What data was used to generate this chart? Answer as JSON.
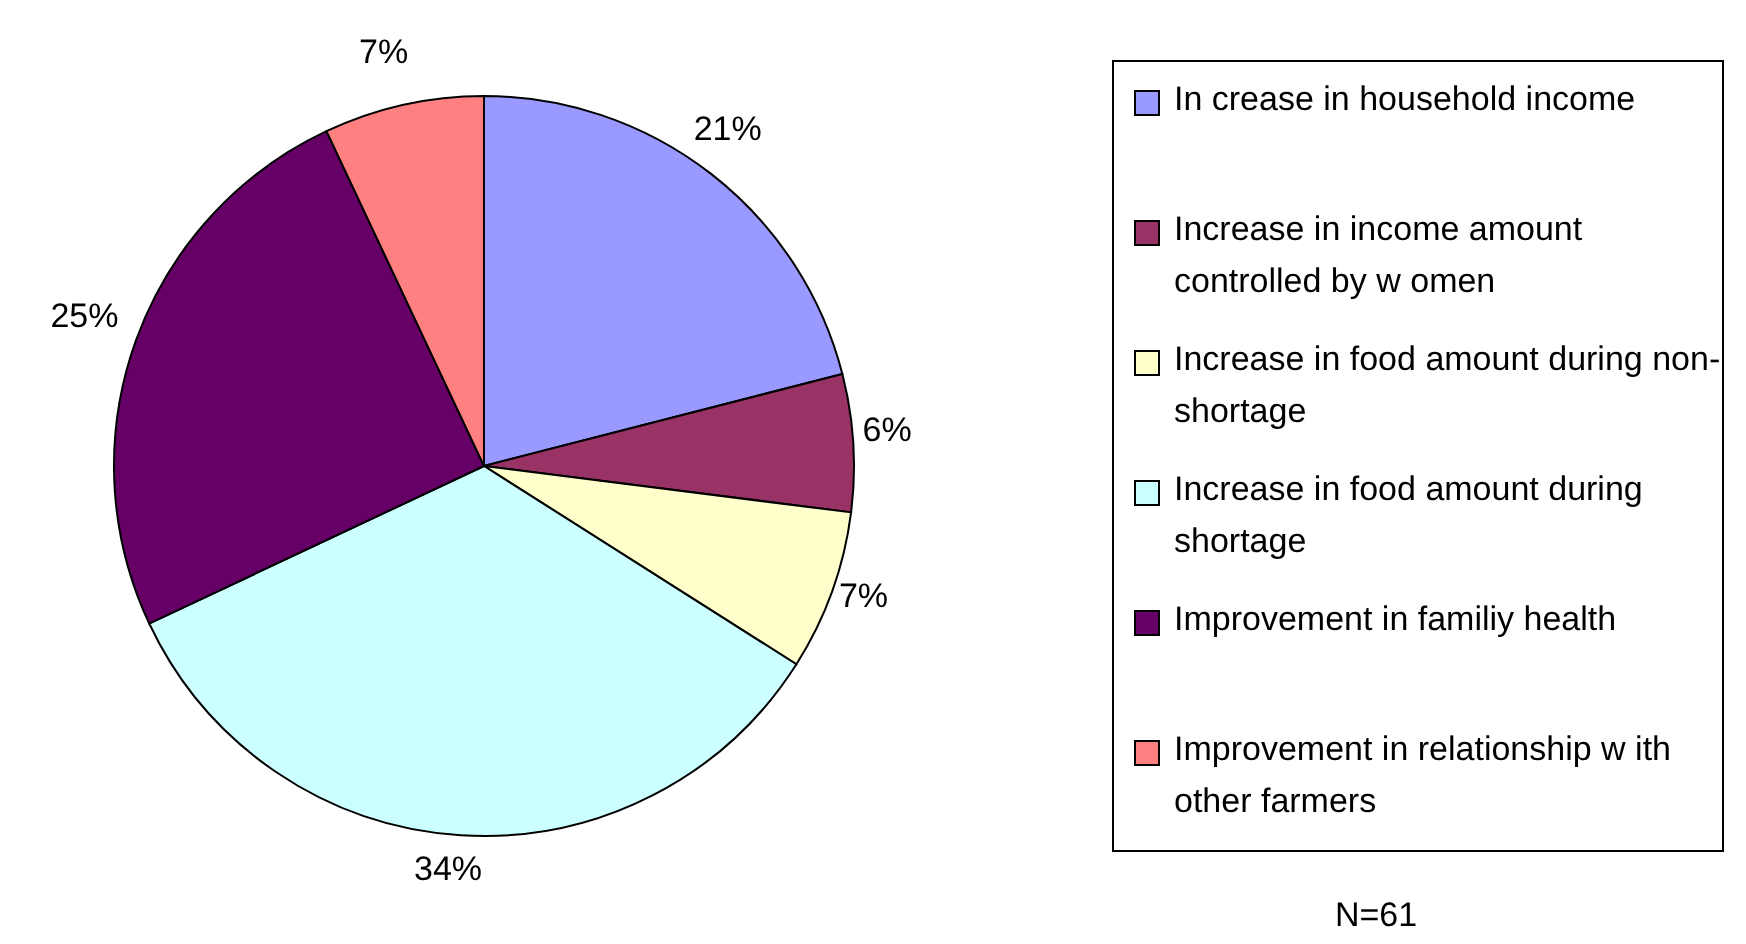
{
  "chart_data": {
    "type": "pie",
    "categories": [
      "In crease in household income",
      "Increase in income amount controlled by w omen",
      "Increase in food amount during non-shortage",
      "Increase in food amount during shortage",
      "Improvement in familiy health",
      "Improvement in relationship w ith other farmers"
    ],
    "values": [
      21,
      6,
      7,
      34,
      25,
      7
    ],
    "colors": [
      "#9999ff",
      "#993366",
      "#ffffcc",
      "#ccffff",
      "#660066",
      "#ff8080"
    ],
    "value_labels": [
      "21%",
      "6%",
      "7%",
      "34%",
      "25%",
      "7%"
    ],
    "legend": "right",
    "annotations": [
      "N=61"
    ]
  }
}
